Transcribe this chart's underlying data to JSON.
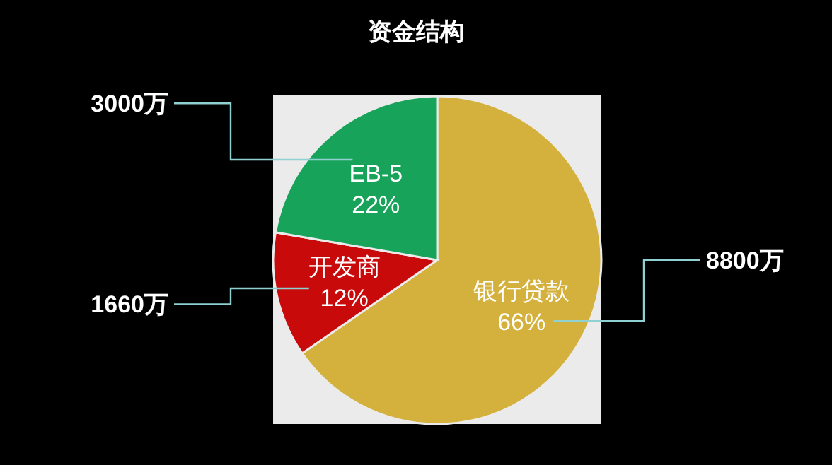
{
  "chart_data": {
    "type": "pie",
    "title": "资金结构",
    "categories": [
      "银行贷款",
      "开发商",
      "EB-5"
    ],
    "values": [
      8800,
      1660,
      3000
    ],
    "value_labels": [
      "8800万",
      "1660万",
      "3000万"
    ],
    "colors": [
      "#d4b13c",
      "#c80a0a",
      "#17a35a"
    ],
    "annotations": [
      {
        "text": "66%",
        "x": "银行贷款"
      },
      {
        "text": "12%",
        "x": "开发商"
      },
      {
        "text": "22%",
        "x": "EB-5"
      }
    ]
  }
}
